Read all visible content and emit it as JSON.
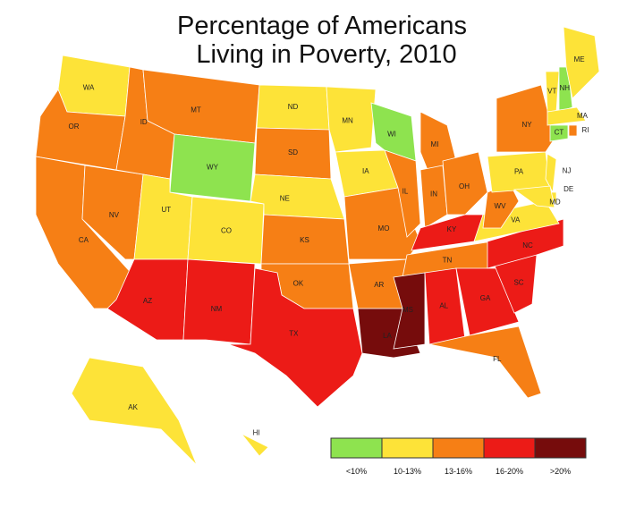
{
  "title": [
    "Percentage of Americans",
    "Living in Poverty, 2010"
  ],
  "legend": [
    {
      "label": "<10%",
      "color": "#8ee34f"
    },
    {
      "label": "10-13%",
      "color": "#fde338"
    },
    {
      "label": "13-16%",
      "color": "#f67f15"
    },
    {
      "label": "16-20%",
      "color": "#ec1b17"
    },
    {
      "label": ">20%",
      "color": "#760c0c"
    }
  ],
  "states": [
    {
      "label": "WA",
      "bin": 1
    },
    {
      "label": "OR",
      "bin": 2
    },
    {
      "label": "CA",
      "bin": 2
    },
    {
      "label": "NV",
      "bin": 2
    },
    {
      "label": "ID",
      "bin": 2
    },
    {
      "label": "MT",
      "bin": 2
    },
    {
      "label": "WY",
      "bin": 0
    },
    {
      "label": "UT",
      "bin": 1
    },
    {
      "label": "CO",
      "bin": 1
    },
    {
      "label": "AZ",
      "bin": 3
    },
    {
      "label": "NM",
      "bin": 3
    },
    {
      "label": "ND",
      "bin": 1
    },
    {
      "label": "SD",
      "bin": 2
    },
    {
      "label": "NE",
      "bin": 1
    },
    {
      "label": "KS",
      "bin": 2
    },
    {
      "label": "OK",
      "bin": 2
    },
    {
      "label": "TX",
      "bin": 3
    },
    {
      "label": "MN",
      "bin": 1
    },
    {
      "label": "IA",
      "bin": 1
    },
    {
      "label": "MO",
      "bin": 2
    },
    {
      "label": "AR",
      "bin": 2
    },
    {
      "label": "LA",
      "bin": 4
    },
    {
      "label": "WI",
      "bin": 0
    },
    {
      "label": "IL",
      "bin": 2
    },
    {
      "label": "MI",
      "bin": 2
    },
    {
      "label": "IN",
      "bin": 2
    },
    {
      "label": "OH",
      "bin": 2
    },
    {
      "label": "KY",
      "bin": 3
    },
    {
      "label": "TN",
      "bin": 2
    },
    {
      "label": "MS",
      "bin": 4
    },
    {
      "label": "AL",
      "bin": 3
    },
    {
      "label": "GA",
      "bin": 3
    },
    {
      "label": "FL",
      "bin": 2
    },
    {
      "label": "SC",
      "bin": 3
    },
    {
      "label": "NC",
      "bin": 3
    },
    {
      "label": "VA",
      "bin": 1
    },
    {
      "label": "WV",
      "bin": 2
    },
    {
      "label": "PA",
      "bin": 1
    },
    {
      "label": "NY",
      "bin": 2
    },
    {
      "label": "NJ",
      "bin": 1
    },
    {
      "label": "DE",
      "bin": 1
    },
    {
      "label": "MD",
      "bin": 1
    },
    {
      "label": "VT",
      "bin": 1
    },
    {
      "label": "NH",
      "bin": 0
    },
    {
      "label": "ME",
      "bin": 1
    },
    {
      "label": "MA",
      "bin": 1
    },
    {
      "label": "CT",
      "bin": 0
    },
    {
      "label": "RI",
      "bin": 2
    },
    {
      "label": "AK",
      "bin": 1
    },
    {
      "label": "HI",
      "bin": 1
    }
  ]
}
